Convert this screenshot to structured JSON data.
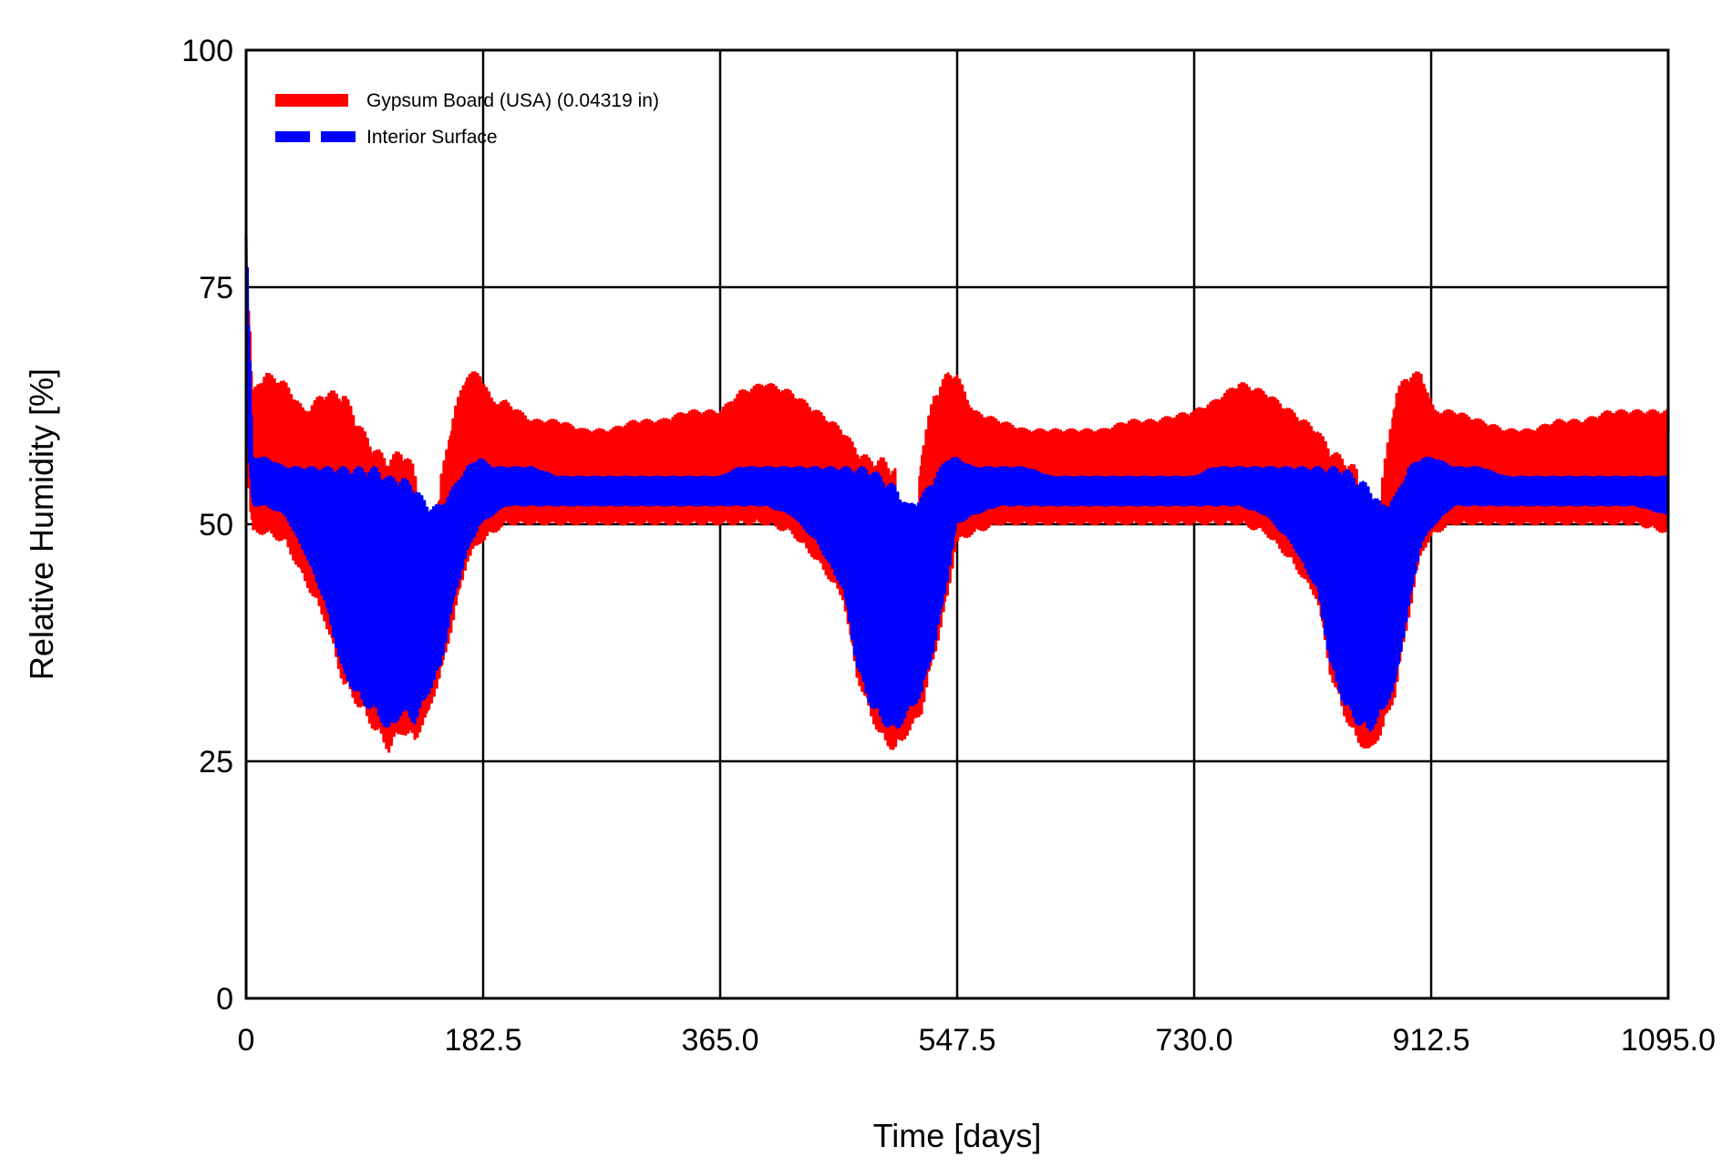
{
  "chart_data": {
    "type": "line",
    "xlabel": "Time [days]",
    "ylabel": "Relative Humidity [%]",
    "xlim": [
      0,
      1095
    ],
    "ylim": [
      0,
      100
    ],
    "x_ticks": [
      0,
      182.5,
      365.0,
      547.5,
      730.0,
      912.5,
      1095.0
    ],
    "x_tick_labels": [
      "0",
      "182.5",
      "365.0",
      "547.5",
      "730.0",
      "912.5",
      "1095.0"
    ],
    "y_ticks": [
      0,
      25,
      50,
      75,
      100
    ],
    "y_tick_labels": [
      "0",
      "25",
      "50",
      "75",
      "100"
    ],
    "grid": true,
    "legend_position": "top-left",
    "series": [
      {
        "name": "Gypsum Board (USA) (0.04319 in)",
        "color": "#ff0000",
        "style": "solid",
        "x": [
          0,
          5,
          15,
          30,
          45,
          60,
          75,
          90,
          100,
          110,
          120,
          130,
          140,
          150,
          160,
          170,
          180,
          190,
          200,
          220,
          240,
          260,
          280,
          300,
          320,
          340,
          365,
          380,
          400,
          420,
          440,
          460,
          470,
          480,
          490,
          500,
          510,
          520,
          530,
          540,
          547,
          560,
          580,
          600,
          620,
          640,
          660,
          680,
          700,
          730,
          745,
          765,
          785,
          805,
          825,
          835,
          845,
          855,
          865,
          875,
          885,
          895,
          905,
          915,
          930,
          950,
          970,
          990,
          1010,
          1030,
          1050,
          1070,
          1095
        ],
        "upper": [
          80,
          64,
          66,
          65,
          62,
          64,
          64,
          60,
          58,
          57,
          58,
          56,
          40,
          55,
          62,
          66,
          66,
          63,
          63,
          61,
          61,
          60,
          60,
          61,
          61,
          62,
          62,
          64,
          65,
          64,
          62,
          60,
          58,
          57,
          57,
          56,
          40,
          58,
          64,
          66,
          66,
          62,
          61,
          60,
          60,
          60,
          60,
          61,
          61,
          62,
          63,
          65,
          64,
          62,
          60,
          58,
          57,
          56,
          40,
          55,
          64,
          66,
          66,
          62,
          62,
          61,
          60,
          60,
          61,
          61,
          62,
          62,
          62
        ],
        "lower": [
          56,
          49,
          49,
          48,
          44,
          40,
          33,
          30,
          28,
          26,
          28,
          27,
          30,
          34,
          40,
          46,
          48,
          49,
          50,
          50,
          50,
          50,
          50,
          50,
          50,
          50,
          50,
          50,
          50,
          49,
          46,
          42,
          34,
          30,
          27,
          26,
          28,
          30,
          36,
          42,
          48,
          49,
          50,
          50,
          50,
          50,
          50,
          50,
          50,
          50,
          50,
          50,
          49,
          46,
          42,
          34,
          30,
          27,
          26,
          28,
          32,
          40,
          47,
          49,
          50,
          50,
          50,
          50,
          50,
          50,
          50,
          50,
          49
        ]
      },
      {
        "name": "Interior Surface",
        "color": "#0000ff",
        "style": "dashed",
        "x": [
          0,
          5,
          15,
          30,
          45,
          60,
          75,
          90,
          100,
          110,
          120,
          130,
          140,
          150,
          160,
          170,
          180,
          190,
          200,
          220,
          240,
          260,
          280,
          300,
          320,
          340,
          365,
          380,
          400,
          420,
          440,
          460,
          470,
          480,
          490,
          500,
          510,
          520,
          530,
          540,
          547,
          560,
          580,
          600,
          620,
          640,
          660,
          680,
          700,
          730,
          745,
          765,
          785,
          805,
          825,
          835,
          845,
          855,
          865,
          875,
          885,
          895,
          905,
          915,
          930,
          950,
          970,
          990,
          1010,
          1030,
          1050,
          1070,
          1095
        ],
        "upper": [
          82,
          57,
          57,
          56,
          56,
          56,
          56,
          56,
          56,
          55,
          55,
          54,
          52,
          52,
          54,
          56,
          57,
          56,
          56,
          56,
          55,
          55,
          55,
          55,
          55,
          55,
          55,
          56,
          56,
          56,
          56,
          56,
          56,
          56,
          55,
          54,
          52,
          53,
          55,
          57,
          57,
          56,
          56,
          56,
          55,
          55,
          55,
          55,
          55,
          55,
          56,
          56,
          56,
          56,
          56,
          56,
          56,
          55,
          54,
          52,
          53,
          56,
          57,
          57,
          56,
          56,
          55,
          55,
          55,
          55,
          55,
          55,
          55
        ],
        "lower": [
          60,
          52,
          52,
          51,
          47,
          42,
          34,
          31,
          30,
          28,
          30,
          29,
          32,
          35,
          42,
          47,
          50,
          51,
          52,
          52,
          52,
          52,
          52,
          52,
          52,
          52,
          52,
          52,
          52,
          51,
          48,
          43,
          35,
          31,
          29,
          28,
          30,
          32,
          37,
          44,
          50,
          51,
          52,
          52,
          52,
          52,
          52,
          52,
          52,
          52,
          52,
          52,
          51,
          48,
          43,
          35,
          31,
          29,
          28,
          30,
          33,
          41,
          48,
          50,
          52,
          52,
          52,
          52,
          52,
          52,
          52,
          52,
          51
        ]
      }
    ]
  }
}
